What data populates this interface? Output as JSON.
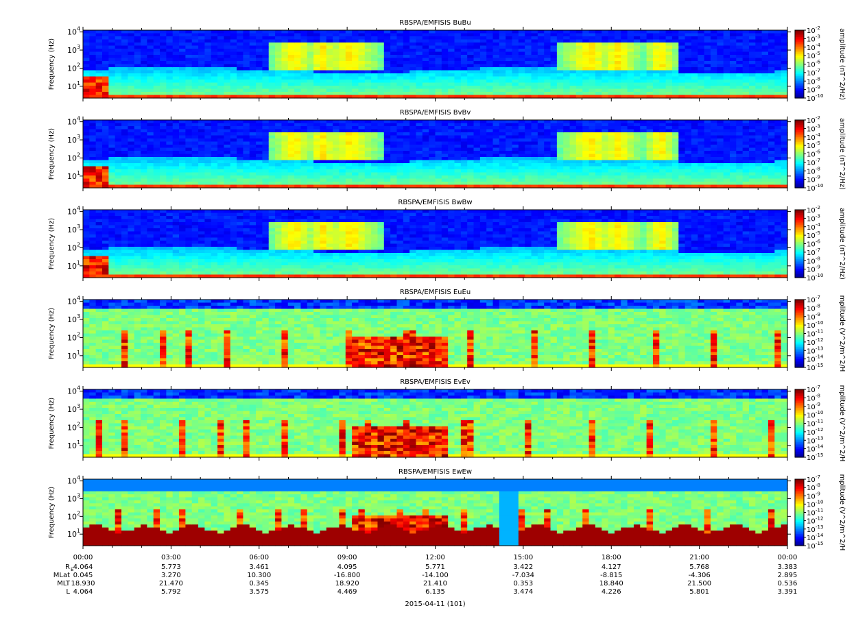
{
  "chart_data": [
    {
      "type": "heatmap",
      "title": "RBSPA/EMFISIS  BuBu",
      "ylabel": "Frequency (Hz)",
      "yscale": "log",
      "y_ticks": [
        "10",
        "10",
        "10",
        "10"
      ],
      "y_tick_exps": [
        "1",
        "2",
        "3",
        "4"
      ],
      "colorbar_label": "amplitude (nT^2/Hz)",
      "colorbar_ticks": [
        "10",
        "10",
        "10",
        "10",
        "10",
        "10",
        "10",
        "10",
        "10"
      ],
      "colorbar_exps": [
        "-2",
        "-3",
        "-4",
        "-5",
        "-6",
        "-7",
        "-8",
        "-9",
        "-10"
      ],
      "colorbar_range": [
        -10,
        -2
      ]
    },
    {
      "type": "heatmap",
      "title": "RBSPA/EMFISIS  BvBv",
      "ylabel": "Frequency (Hz)",
      "yscale": "log",
      "y_ticks": [
        "10",
        "10",
        "10",
        "10"
      ],
      "y_tick_exps": [
        "1",
        "2",
        "3",
        "4"
      ],
      "colorbar_label": "amplitude (nT^2/Hz)",
      "colorbar_ticks": [
        "10",
        "10",
        "10",
        "10",
        "10",
        "10",
        "10",
        "10",
        "10"
      ],
      "colorbar_exps": [
        "-2",
        "-3",
        "-4",
        "-5",
        "-6",
        "-7",
        "-8",
        "-9",
        "-10"
      ],
      "colorbar_range": [
        -10,
        -2
      ]
    },
    {
      "type": "heatmap",
      "title": "RBSPA/EMFISIS  BwBw",
      "ylabel": "Frequency (Hz)",
      "yscale": "log",
      "y_ticks": [
        "10",
        "10",
        "10",
        "10"
      ],
      "y_tick_exps": [
        "1",
        "2",
        "3",
        "4"
      ],
      "colorbar_label": "amplitude (nT^2/Hz)",
      "colorbar_ticks": [
        "10",
        "10",
        "10",
        "10",
        "10",
        "10",
        "10",
        "10",
        "10"
      ],
      "colorbar_exps": [
        "-2",
        "-3",
        "-4",
        "-5",
        "-6",
        "-7",
        "-8",
        "-9",
        "-10"
      ],
      "colorbar_range": [
        -10,
        -2
      ]
    },
    {
      "type": "heatmap",
      "title": "RBSPA/EMFISIS  EuEu",
      "ylabel": "Frequency (Hz)",
      "yscale": "log",
      "y_ticks": [
        "10",
        "10",
        "10",
        "10"
      ],
      "y_tick_exps": [
        "1",
        "2",
        "3",
        "4"
      ],
      "colorbar_label": "mplitude (V^2/m^2/H",
      "colorbar_ticks": [
        "10",
        "10",
        "10",
        "10",
        "10",
        "10",
        "10",
        "10",
        "10"
      ],
      "colorbar_exps": [
        "-7",
        "-8",
        "-9",
        "-10",
        "-11",
        "-12",
        "-13",
        "-14",
        "-15"
      ],
      "colorbar_range": [
        -15,
        -7
      ]
    },
    {
      "type": "heatmap",
      "title": "RBSPA/EMFISIS  EvEv",
      "ylabel": "Frequency (Hz)",
      "yscale": "log",
      "y_ticks": [
        "10",
        "10",
        "10",
        "10"
      ],
      "y_tick_exps": [
        "1",
        "2",
        "3",
        "4"
      ],
      "colorbar_label": "mplitude (V^2/m^2/H",
      "colorbar_ticks": [
        "10",
        "10",
        "10",
        "10",
        "10",
        "10",
        "10",
        "10",
        "10"
      ],
      "colorbar_exps": [
        "-7",
        "-8",
        "-9",
        "-10",
        "-11",
        "-12",
        "-13",
        "-14",
        "-15"
      ],
      "colorbar_range": [
        -15,
        -7
      ]
    },
    {
      "type": "heatmap",
      "title": "RBSPA/EMFISIS  EwEw",
      "ylabel": "Frequency (Hz)",
      "yscale": "log",
      "y_ticks": [
        "10",
        "10",
        "10",
        "10"
      ],
      "y_tick_exps": [
        "1",
        "2",
        "3",
        "4"
      ],
      "colorbar_label": "mplitude (V^2/m^2/H",
      "colorbar_ticks": [
        "10",
        "10",
        "10",
        "10",
        "10",
        "10",
        "10",
        "10",
        "10"
      ],
      "colorbar_exps": [
        "-7",
        "-8",
        "-9",
        "-10",
        "-11",
        "-12",
        "-13",
        "-14",
        "-15"
      ],
      "colorbar_range": [
        -15,
        -7
      ]
    }
  ],
  "x_axis": {
    "time_labels": [
      "00:00",
      "03:00",
      "06:00",
      "09:00",
      "12:00",
      "15:00",
      "18:00",
      "21:00",
      "00:00"
    ],
    "ephemeris": [
      {
        "label": "R",
        "label_sub": "E",
        "values": [
          "4.064",
          "5.773",
          "3.461",
          "4.095",
          "5.771",
          "3.422",
          "4.127",
          "5.768",
          "3.383"
        ]
      },
      {
        "label": "MLat",
        "label_sub": "",
        "values": [
          "0.045",
          "3.270",
          "10.300",
          "-16.800",
          "-14.100",
          "-7.034",
          "-8.815",
          "-4.306",
          "2.895"
        ]
      },
      {
        "label": "MLT",
        "label_sub": "",
        "values": [
          "18.930",
          "21.470",
          "0.345",
          "18.920",
          "21.410",
          "0.353",
          "18.840",
          "21.500",
          "0.536"
        ]
      },
      {
        "label": "L",
        "label_sub": "",
        "values": [
          "4.064",
          "5.792",
          "3.575",
          "4.469",
          "6.135",
          "3.474",
          "4.226",
          "5.801",
          "3.391"
        ]
      }
    ],
    "date_label": "2015-04-11 (101)"
  }
}
